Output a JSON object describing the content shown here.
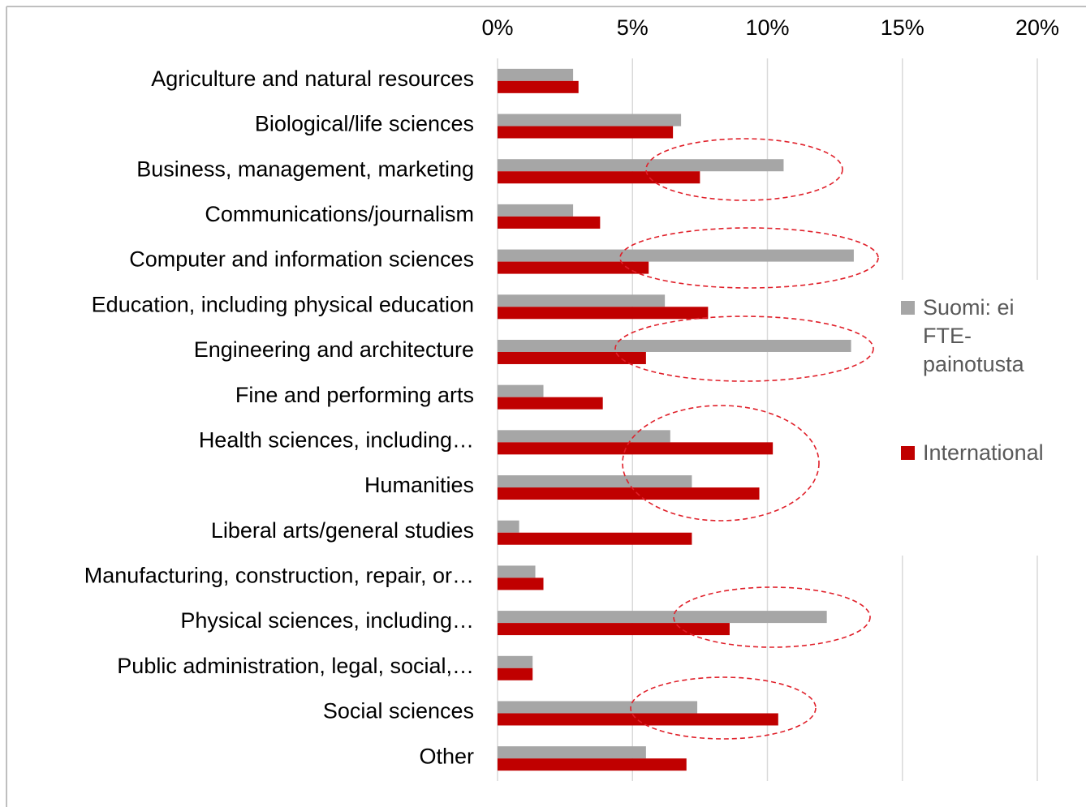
{
  "chart_data": {
    "type": "barh",
    "categories": [
      "Agriculture and natural resources",
      "Biological/life sciences",
      "Business, management, marketing",
      "Communications/journalism",
      "Computer and information sciences",
      "Education, including physical education",
      "Engineering and architecture",
      "Fine and performing arts",
      "Health sciences, including…",
      "Humanities",
      "Liberal arts/general studies",
      "Manufacturing, construction, repair, or…",
      "Physical sciences, including…",
      "Public administration, legal, social,…",
      "Social sciences",
      "Other"
    ],
    "series": [
      {
        "name": "Suomi: ei FTE-painotusta",
        "color": "#a6a6a6",
        "values": [
          2.8,
          6.8,
          10.6,
          2.8,
          13.2,
          6.2,
          13.1,
          1.7,
          6.4,
          7.2,
          0.8,
          1.4,
          12.2,
          1.3,
          7.4,
          5.5
        ]
      },
      {
        "name": "International",
        "color": "#c00000",
        "values": [
          3.0,
          6.5,
          7.5,
          3.8,
          5.6,
          7.8,
          5.5,
          3.9,
          10.2,
          9.7,
          7.2,
          1.7,
          8.6,
          1.3,
          10.4,
          7.0
        ]
      }
    ],
    "xlim": [
      0,
      20
    ],
    "xticks": [
      {
        "value": 0,
        "label": "0%"
      },
      {
        "value": 5,
        "label": "5%"
      },
      {
        "value": 10,
        "label": "10%"
      },
      {
        "value": 15,
        "label": "15%"
      },
      {
        "value": 20,
        "label": "20%"
      }
    ],
    "grid": true,
    "legend": "right"
  }
}
